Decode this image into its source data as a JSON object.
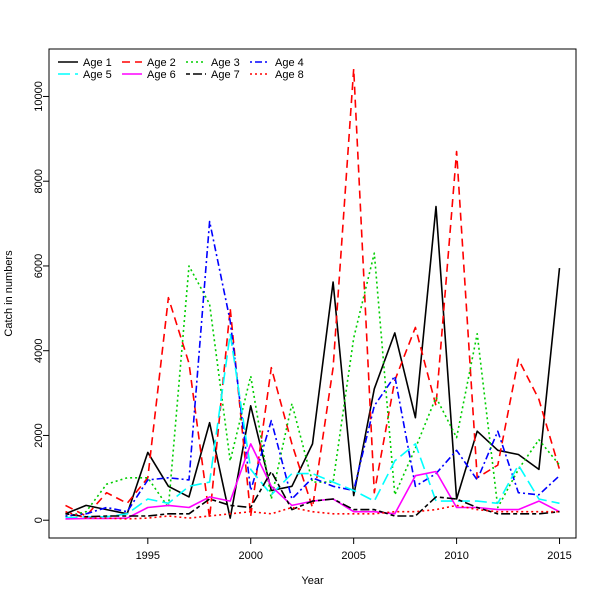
{
  "chart_data": {
    "type": "line",
    "title": "",
    "xlabel": "Year",
    "ylabel": "Catch in numbers",
    "xlim": [
      1990.2,
      2015.8
    ],
    "ylim": [
      -420,
      11120
    ],
    "x_ticks": [
      1995,
      2000,
      2005,
      2010,
      2015
    ],
    "y_ticks": [
      0,
      2000,
      4000,
      6000,
      8000,
      10000
    ],
    "grid": false,
    "legend_position": "top-left",
    "legend_columns": 4,
    "x": [
      1991,
      1992,
      1993,
      1994,
      1995,
      1996,
      1997,
      1998,
      1999,
      2000,
      2001,
      2002,
      2003,
      2004,
      2005,
      2006,
      2007,
      2008,
      2009,
      2010,
      2011,
      2012,
      2013,
      2014,
      2015
    ],
    "series": [
      {
        "name": "Age 1",
        "color": "#000000",
        "dash": "solid",
        "values": [
          150,
          350,
          250,
          150,
          1600,
          800,
          550,
          2300,
          50,
          2700,
          700,
          800,
          1800,
          5620,
          580,
          3100,
          4420,
          2420,
          7400,
          500,
          2100,
          1650,
          1550,
          1200,
          5950
        ]
      },
      {
        "name": "Age 2",
        "color": "#ff0000",
        "dash": "dashed",
        "values": [
          350,
          100,
          650,
          400,
          1000,
          5250,
          3700,
          50,
          5000,
          100,
          3600,
          1800,
          300,
          3600,
          10650,
          650,
          3300,
          4550,
          2700,
          8700,
          1000,
          1300,
          3800,
          2850,
          1200
        ]
      },
      {
        "name": "Age 3",
        "color": "#00cd00",
        "dash": "dotted",
        "values": [
          80,
          200,
          850,
          1000,
          1000,
          300,
          6000,
          5100,
          1400,
          3400,
          500,
          2750,
          900,
          900,
          4300,
          6300,
          600,
          1700,
          2900,
          1950,
          4400,
          300,
          1200,
          1900,
          1300
        ]
      },
      {
        "name": "Age 4",
        "color": "#0000ff",
        "dash": "dotdash",
        "values": [
          100,
          150,
          300,
          200,
          950,
          1000,
          950,
          7050,
          4700,
          700,
          2350,
          500,
          1000,
          800,
          700,
          2700,
          3400,
          800,
          1100,
          1650,
          950,
          2100,
          650,
          600,
          1050
        ]
      },
      {
        "name": "Age 5",
        "color": "#00ffff",
        "dash": "longdash",
        "values": [
          60,
          80,
          80,
          150,
          500,
          400,
          800,
          900,
          4400,
          1200,
          600,
          1100,
          1100,
          900,
          700,
          450,
          1400,
          1800,
          450,
          450,
          450,
          400,
          1300,
          500,
          400
        ]
      },
      {
        "name": "Age 6",
        "color": "#ff00ff",
        "dash": "solid",
        "values": [
          30,
          40,
          40,
          50,
          300,
          350,
          300,
          550,
          450,
          1800,
          800,
          350,
          450,
          500,
          200,
          200,
          150,
          1050,
          1150,
          300,
          300,
          250,
          250,
          450,
          200
        ]
      },
      {
        "name": "Age 7",
        "color": "#000000",
        "dash": "twodash",
        "values": [
          150,
          80,
          100,
          100,
          100,
          150,
          150,
          500,
          350,
          300,
          1150,
          250,
          450,
          500,
          250,
          250,
          100,
          100,
          550,
          500,
          300,
          150,
          150,
          150,
          200
        ]
      },
      {
        "name": "Age 8",
        "color": "#ff0000",
        "dash": "dotted",
        "values": [
          200,
          50,
          50,
          30,
          50,
          100,
          50,
          100,
          150,
          200,
          150,
          300,
          200,
          150,
          150,
          150,
          200,
          200,
          250,
          350,
          250,
          200,
          200,
          200,
          200
        ]
      }
    ]
  }
}
